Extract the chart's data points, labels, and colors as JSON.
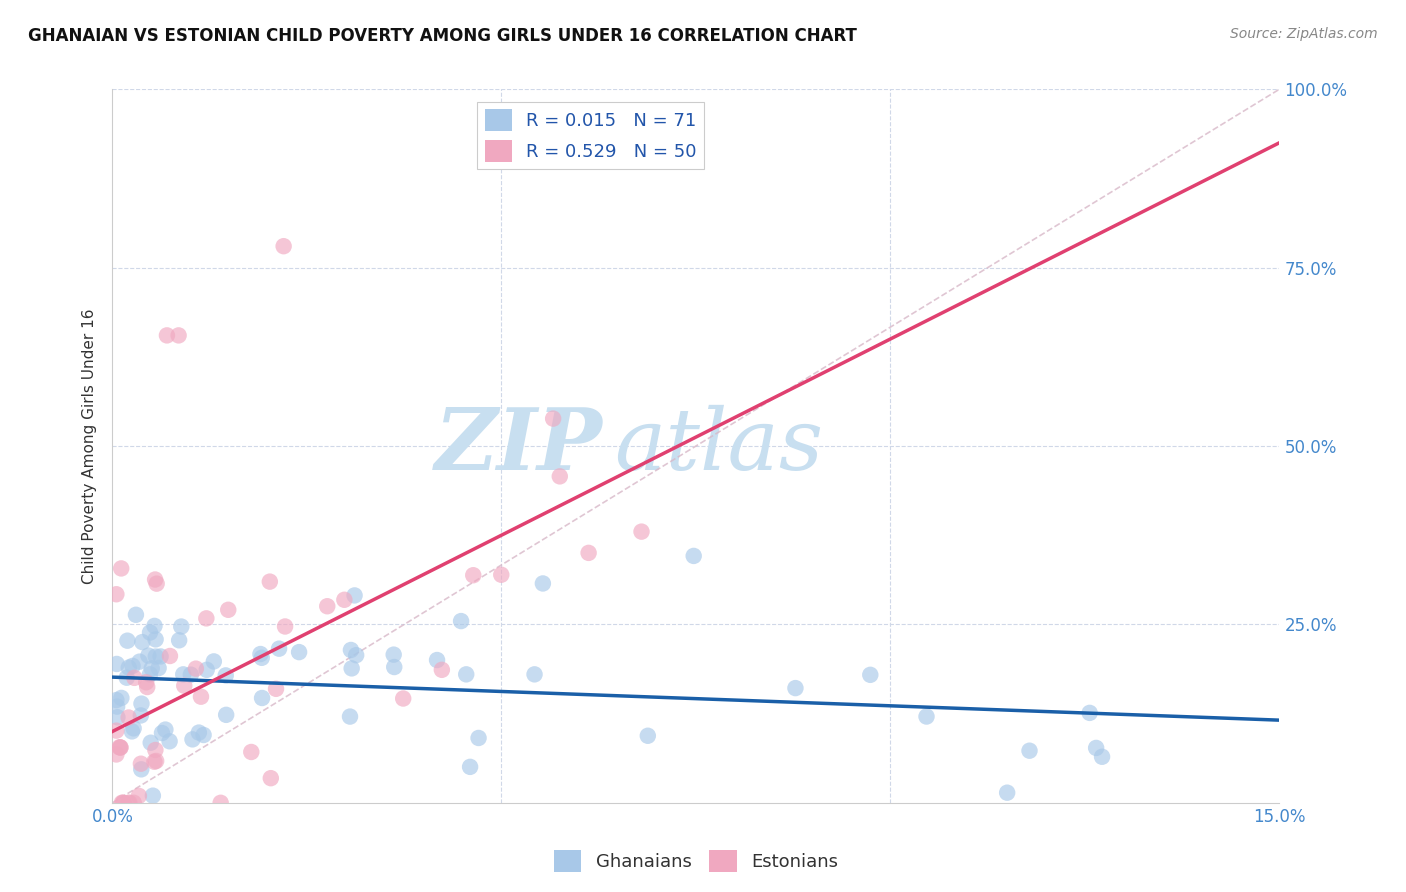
{
  "title": "GHANAIAN VS ESTONIAN CHILD POVERTY AMONG GIRLS UNDER 16 CORRELATION CHART",
  "source": "Source: ZipAtlas.com",
  "ylabel_label": "Child Poverty Among Girls Under 16",
  "x_min": 0.0,
  "x_max": 0.15,
  "y_min": 0.0,
  "y_max": 1.0,
  "ghanaian_R": 0.015,
  "ghanaian_N": 71,
  "estonian_R": 0.529,
  "estonian_N": 50,
  "ghanaian_color": "#a8c8e8",
  "estonian_color": "#f0a8c0",
  "ghanaian_line_color": "#1a5fa8",
  "estonian_line_color": "#e04070",
  "diagonal_color": "#d8b8c8",
  "watermark_zip_color": "#c8dff0",
  "watermark_atlas_color": "#c8dff0",
  "tick_label_color": "#4488cc",
  "title_color": "#111111",
  "source_color": "#888888",
  "grid_color": "#d0d8e8",
  "background_color": "#ffffff",
  "legend_label_color": "#2255aa"
}
